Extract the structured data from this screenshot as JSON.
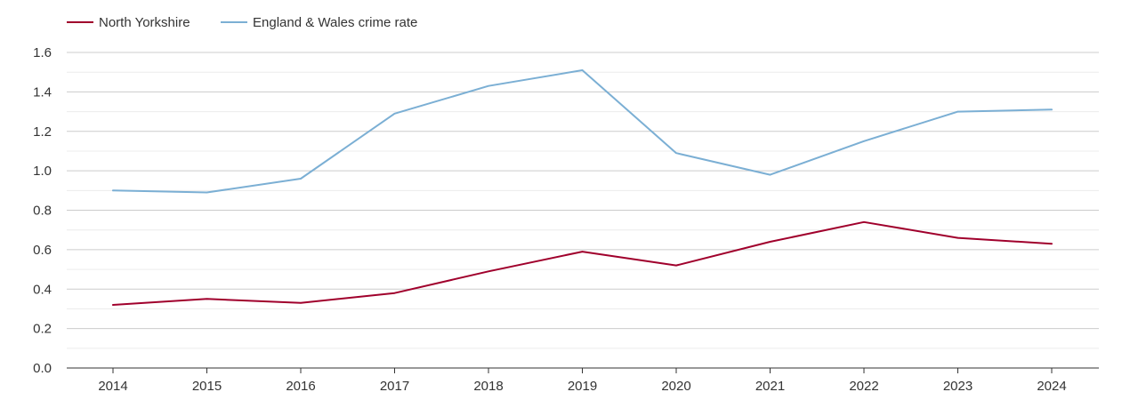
{
  "chart_data": {
    "type": "line",
    "title": "",
    "xlabel": "",
    "ylabel": "",
    "categories": [
      "2014",
      "2015",
      "2016",
      "2017",
      "2018",
      "2019",
      "2020",
      "2021",
      "2022",
      "2023",
      "2024"
    ],
    "series": [
      {
        "name": "North Yorkshire",
        "color": "#a0002c",
        "values": [
          0.32,
          0.35,
          0.33,
          0.38,
          0.49,
          0.59,
          0.52,
          0.64,
          0.74,
          0.66,
          0.63
        ]
      },
      {
        "name": "England & Wales crime rate",
        "color": "#7bafd4",
        "values": [
          0.9,
          0.89,
          0.96,
          1.29,
          1.43,
          1.51,
          1.09,
          0.98,
          1.15,
          1.3,
          1.31
        ]
      }
    ],
    "ylim": [
      0,
      1.6
    ],
    "yticks": [
      "0.0",
      "0.2",
      "0.4",
      "0.6",
      "0.8",
      "1.0",
      "1.2",
      "1.4",
      "1.6"
    ],
    "grid": true,
    "legend_position": "top-left"
  }
}
